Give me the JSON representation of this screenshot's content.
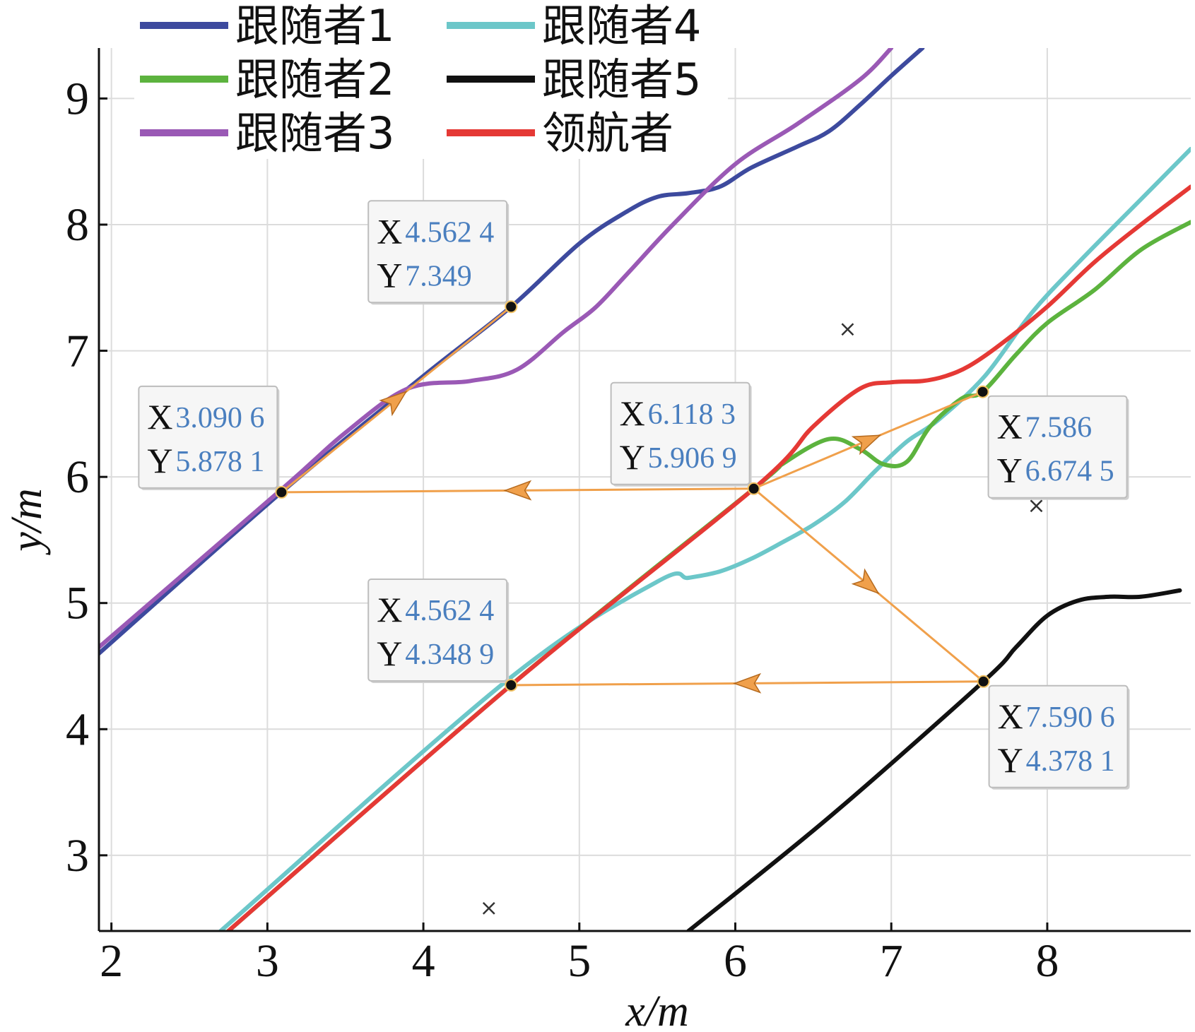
{
  "chart_data": {
    "type": "line",
    "xlabel": "x/m",
    "ylabel": "y/m",
    "xlim": [
      1.92,
      8.92
    ],
    "ylim": [
      2.4,
      9.4
    ],
    "xticks": [
      2,
      3,
      4,
      5,
      6,
      7,
      8
    ],
    "yticks": [
      3,
      4,
      5,
      6,
      7,
      8,
      9
    ],
    "grid": true,
    "legend_position": "top-left",
    "series": [
      {
        "name": "跟随者1",
        "color": "#3d4a9e",
        "x": [
          1.92,
          3.09,
          4.0,
          4.5624,
          5.0,
          5.3,
          5.5,
          5.7,
          5.9,
          6.1,
          6.4,
          6.6,
          6.8,
          7.0,
          7.2
        ],
        "y": [
          4.6,
          5.8781,
          6.8,
          7.349,
          7.85,
          8.1,
          8.22,
          8.25,
          8.3,
          8.45,
          8.62,
          8.74,
          8.95,
          9.18,
          9.4
        ]
      },
      {
        "name": "跟随者2",
        "color": "#5cb33e",
        "x": [
          2.75,
          4.5624,
          6.1183,
          6.3,
          6.6,
          6.8,
          6.95,
          7.1,
          7.25,
          7.45,
          7.586,
          7.8,
          8.0,
          8.3,
          8.6,
          8.92
        ],
        "y": [
          2.4,
          4.35,
          5.9069,
          6.1,
          6.3,
          6.22,
          6.1,
          6.12,
          6.4,
          6.62,
          6.6745,
          6.97,
          7.22,
          7.48,
          7.8,
          8.02
        ]
      },
      {
        "name": "跟随者3",
        "color": "#9a59b5",
        "x": [
          1.92,
          3.09,
          3.5,
          3.9,
          4.3,
          4.6,
          4.9,
          5.1,
          5.3,
          5.6,
          6.0,
          6.4,
          6.8,
          7.0
        ],
        "y": [
          4.65,
          5.9,
          6.35,
          6.7,
          6.76,
          6.85,
          7.15,
          7.34,
          7.6,
          8.0,
          8.48,
          8.8,
          9.15,
          9.4
        ]
      },
      {
        "name": "跟随者4",
        "color": "#6cc7c9",
        "x": [
          2.7,
          4.55,
          5.5,
          5.7,
          5.9,
          6.1,
          6.3,
          6.5,
          6.7,
          6.9,
          7.1,
          7.3,
          7.6,
          7.9,
          8.2,
          8.6,
          8.92
        ],
        "y": [
          2.4,
          4.4,
          5.17,
          5.2,
          5.25,
          5.35,
          5.48,
          5.62,
          5.8,
          6.05,
          6.28,
          6.45,
          6.8,
          7.3,
          7.7,
          8.2,
          8.6
        ]
      },
      {
        "name": "跟随者5",
        "color": "#111111",
        "x": [
          5.7,
          6.6,
          7.5906,
          7.8,
          8.0,
          8.2,
          8.4,
          8.6,
          8.85
        ],
        "y": [
          2.4,
          3.3,
          4.3781,
          4.65,
          4.9,
          5.02,
          5.05,
          5.05,
          5.1
        ]
      },
      {
        "name": "领航者",
        "color": "#e53935",
        "x": [
          2.75,
          4.5624,
          6.1183,
          6.5,
          6.8,
          7.0,
          7.2,
          7.35,
          7.5,
          7.7,
          8.0,
          8.3,
          8.6,
          8.92
        ],
        "y": [
          2.4,
          4.3489,
          5.9069,
          6.4,
          6.7,
          6.75,
          6.76,
          6.8,
          6.88,
          7.05,
          7.35,
          7.7,
          8.0,
          8.3
        ]
      }
    ],
    "datatips": [
      {
        "point": [
          3.0906,
          5.8781
        ],
        "x_text": "3.090 6",
        "y_text": "5.878 1",
        "placement": "upper-left"
      },
      {
        "point": [
          4.5624,
          7.349
        ],
        "x_text": "4.562 4",
        "y_text": "7.349",
        "placement": "upper-left"
      },
      {
        "point": [
          6.1183,
          5.9069
        ],
        "x_text": "6.118 3",
        "y_text": "5.906 9",
        "placement": "upper-left"
      },
      {
        "point": [
          7.586,
          6.6745
        ],
        "x_text": "7.586",
        "y_text": "6.674 5",
        "placement": "lower-right"
      },
      {
        "point": [
          4.5624,
          4.3489
        ],
        "x_text": "4.562 4",
        "y_text": "4.348 9",
        "placement": "upper-left"
      },
      {
        "point": [
          7.5906,
          4.3781
        ],
        "x_text": "7.590 6",
        "y_text": "4.378 1",
        "placement": "lower-right"
      }
    ],
    "arrows": [
      {
        "from": [
          6.1183,
          5.9069
        ],
        "to": [
          3.0906,
          5.8781
        ]
      },
      {
        "from": [
          3.0906,
          5.8781
        ],
        "to": [
          4.5624,
          7.349
        ]
      },
      {
        "from": [
          6.1183,
          5.9069
        ],
        "to": [
          7.586,
          6.6745
        ]
      },
      {
        "from": [
          6.1183,
          5.9069
        ],
        "to": [
          7.5906,
          4.3781
        ]
      },
      {
        "from": [
          7.5906,
          4.3781
        ],
        "to": [
          4.5624,
          4.3489
        ]
      }
    ],
    "arrow_color": "#f0a04b",
    "markers_x": [
      [
        6.72,
        7.17
      ],
      [
        7.93,
        5.77
      ],
      [
        4.42,
        2.58
      ]
    ]
  },
  "legend": {
    "entries": [
      "跟随者1",
      "跟随者4",
      "跟随者2",
      "跟随者5",
      "跟随者3",
      "领航者"
    ]
  },
  "datatip_labels": {
    "x": "X",
    "y": "Y"
  }
}
